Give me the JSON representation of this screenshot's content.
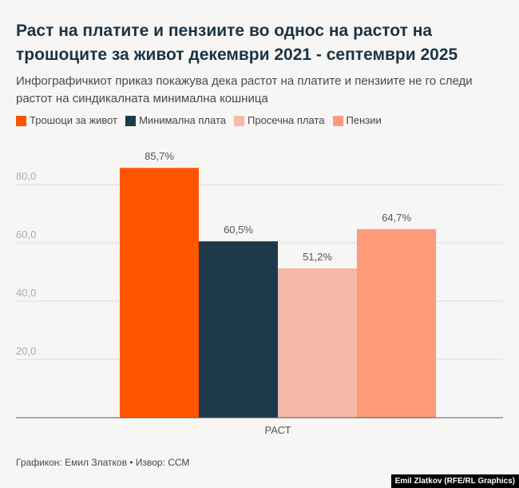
{
  "title": "Раст на платите и пензиите во однос на растот на трошоците за живот декември 2021 - септември 2025",
  "subtitle": "Инфографичкиот приказ покажува дека растот на платите и пензиите не го следи растот на синдикалната минимална кошница",
  "footer": "Графикон: Емил Златков • Извор: ССМ",
  "credit": "Emil Zlatkov (RFE/RL Graphics)",
  "chart_data": {
    "type": "bar",
    "categories": [
      "РАСТ"
    ],
    "series": [
      {
        "name": "Трошоци за живот",
        "values": [
          85.7
        ],
        "label": "85,7%",
        "color": "#ff5500"
      },
      {
        "name": "Минимална плата",
        "values": [
          60.5
        ],
        "label": "60,5%",
        "color": "#1d3a4b"
      },
      {
        "name": "Просечна плата",
        "values": [
          51.2
        ],
        "label": "51,2%",
        "color": "#f6b8a8"
      },
      {
        "name": "Пензии",
        "values": [
          64.7
        ],
        "label": "64,7%",
        "color": "#fd9a7a"
      }
    ],
    "yticks": [
      20,
      40,
      60,
      80
    ],
    "ytick_labels": [
      "20,0",
      "40,0",
      "60,0",
      "80,0"
    ],
    "ylim": [
      0,
      100
    ],
    "grid": true,
    "legend": "top-left"
  }
}
